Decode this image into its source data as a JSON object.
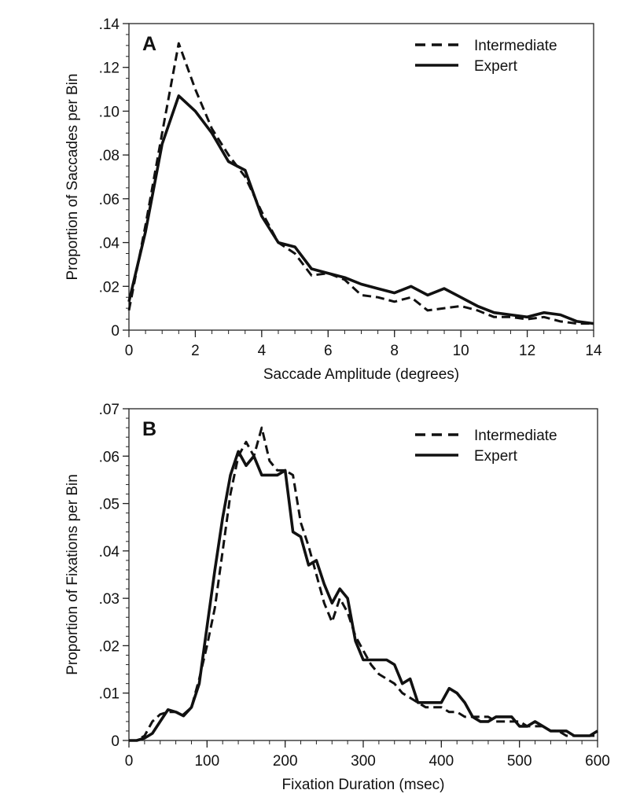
{
  "chart_data": [
    {
      "type": "line",
      "panel_label": "A",
      "xlabel": "Saccade Amplitude (degrees)",
      "ylabel": "Proportion of Saccades per Bin",
      "xlim": [
        0,
        14
      ],
      "ylim": [
        0,
        0.14
      ],
      "xticks": [
        0,
        2,
        4,
        6,
        8,
        10,
        12,
        14
      ],
      "xtick_labels": [
        "0",
        "2",
        "4",
        "6",
        "8",
        "10",
        "12",
        "14"
      ],
      "yticks": [
        0,
        0.02,
        0.04,
        0.06,
        0.08,
        0.1,
        0.12,
        0.14
      ],
      "ytick_labels": [
        "0",
        ".02",
        ".04",
        ".06",
        ".08",
        ".10",
        ".12",
        ".14"
      ],
      "grid": false,
      "legend_position": "top-right",
      "x": [
        0,
        0.5,
        1,
        1.5,
        2,
        2.5,
        3,
        3.5,
        4,
        4.5,
        5,
        5.5,
        6,
        6.5,
        7,
        7.5,
        8,
        8.5,
        9,
        9.5,
        10,
        10.5,
        11,
        11.5,
        12,
        12.5,
        13,
        13.5,
        14
      ],
      "series": [
        {
          "name": "Intermediate",
          "style": "dashed",
          "values": [
            0.009,
            0.048,
            0.09,
            0.131,
            0.11,
            0.092,
            0.08,
            0.07,
            0.054,
            0.04,
            0.035,
            0.025,
            0.026,
            0.023,
            0.016,
            0.015,
            0.013,
            0.015,
            0.009,
            0.01,
            0.011,
            0.009,
            0.006,
            0.006,
            0.005,
            0.006,
            0.004,
            0.003,
            0.003
          ]
        },
        {
          "name": "Expert",
          "style": "solid",
          "values": [
            0.013,
            0.045,
            0.085,
            0.107,
            0.1,
            0.09,
            0.077,
            0.073,
            0.052,
            0.04,
            0.038,
            0.028,
            0.026,
            0.024,
            0.021,
            0.019,
            0.017,
            0.02,
            0.016,
            0.019,
            0.015,
            0.011,
            0.008,
            0.007,
            0.006,
            0.008,
            0.007,
            0.004,
            0.003
          ]
        }
      ]
    },
    {
      "type": "line",
      "panel_label": "B",
      "xlabel": "Fixation Duration (msec)",
      "ylabel": "Proportion of Fixations per Bin",
      "xlim": [
        0,
        600
      ],
      "ylim": [
        0,
        0.07
      ],
      "xticks": [
        0,
        100,
        200,
        300,
        400,
        500,
        600
      ],
      "xtick_labels": [
        "0",
        "100",
        "200",
        "300",
        "400",
        "500",
        "600"
      ],
      "yticks": [
        0,
        0.01,
        0.02,
        0.03,
        0.04,
        0.05,
        0.06,
        0.07
      ],
      "ytick_labels": [
        "0",
        ".01",
        ".02",
        ".03",
        ".04",
        ".05",
        ".06",
        ".07"
      ],
      "grid": false,
      "legend_position": "top-right",
      "x": [
        0,
        10,
        20,
        30,
        40,
        50,
        60,
        70,
        80,
        90,
        100,
        110,
        120,
        130,
        140,
        150,
        160,
        170,
        180,
        190,
        200,
        210,
        220,
        230,
        240,
        250,
        260,
        270,
        280,
        290,
        300,
        310,
        320,
        330,
        340,
        350,
        360,
        370,
        380,
        390,
        400,
        410,
        420,
        430,
        440,
        450,
        460,
        470,
        480,
        490,
        500,
        510,
        520,
        530,
        540,
        550,
        560,
        570,
        580,
        590,
        600
      ],
      "series": [
        {
          "name": "Intermediate",
          "style": "dashed",
          "values": [
            0,
            0,
            0.001,
            0.004,
            0.0055,
            0.006,
            0.006,
            0.0055,
            0.007,
            0.013,
            0.02,
            0.028,
            0.04,
            0.052,
            0.06,
            0.063,
            0.06,
            0.066,
            0.059,
            0.057,
            0.057,
            0.056,
            0.046,
            0.041,
            0.035,
            0.029,
            0.025,
            0.03,
            0.027,
            0.022,
            0.019,
            0.016,
            0.014,
            0.013,
            0.012,
            0.01,
            0.009,
            0.008,
            0.007,
            0.007,
            0.007,
            0.006,
            0.006,
            0.005,
            0.005,
            0.005,
            0.005,
            0.004,
            0.004,
            0.004,
            0.004,
            0.003,
            0.003,
            0.003,
            0.002,
            0.002,
            0.001,
            0.001,
            0.001,
            0.001,
            0.001
          ]
        },
        {
          "name": "Expert",
          "style": "solid",
          "values": [
            0,
            0,
            0.0005,
            0.0015,
            0.004,
            0.0065,
            0.006,
            0.0052,
            0.007,
            0.012,
            0.024,
            0.036,
            0.047,
            0.056,
            0.061,
            0.058,
            0.06,
            0.056,
            0.056,
            0.056,
            0.057,
            0.044,
            0.043,
            0.037,
            0.038,
            0.033,
            0.029,
            0.032,
            0.03,
            0.021,
            0.017,
            0.017,
            0.017,
            0.017,
            0.016,
            0.012,
            0.013,
            0.008,
            0.008,
            0.008,
            0.008,
            0.011,
            0.01,
            0.008,
            0.005,
            0.004,
            0.004,
            0.005,
            0.005,
            0.005,
            0.003,
            0.003,
            0.004,
            0.003,
            0.002,
            0.002,
            0.002,
            0.001,
            0.001,
            0.001,
            0.002
          ]
        }
      ]
    }
  ]
}
